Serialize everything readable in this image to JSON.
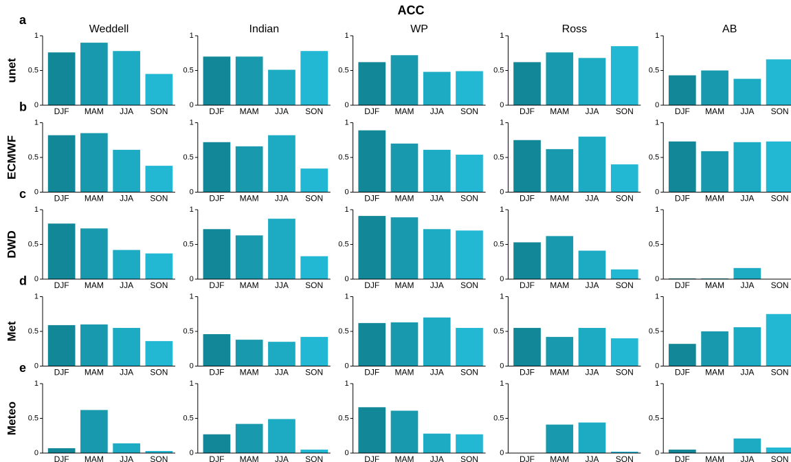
{
  "title": "ACC",
  "chart_data": [
    {
      "type": "bar",
      "title": "Weddell",
      "panel": "a",
      "ylabel": "unet",
      "categories": [
        "DJF",
        "MAM",
        "JJA",
        "SON"
      ],
      "values": [
        0.76,
        0.9,
        0.78,
        0.45
      ],
      "colors": [
        "#118797",
        "#1899ad",
        "#1cabc3",
        "#22b7d2"
      ],
      "ylim": [
        0,
        1
      ],
      "yticks": [
        0,
        0.5,
        1
      ]
    },
    {
      "type": "bar",
      "title": "Indian",
      "categories": [
        "DJF",
        "MAM",
        "JJA",
        "SON"
      ],
      "values": [
        0.7,
        0.7,
        0.51,
        0.78
      ],
      "colors": [
        "#118797",
        "#1899ad",
        "#1cabc3",
        "#22b7d2"
      ],
      "ylim": [
        0,
        1
      ],
      "yticks": [
        0,
        0.5,
        1
      ]
    },
    {
      "type": "bar",
      "title": "WP",
      "categories": [
        "DJF",
        "MAM",
        "JJA",
        "SON"
      ],
      "values": [
        0.62,
        0.72,
        0.48,
        0.49
      ],
      "colors": [
        "#118797",
        "#1899ad",
        "#1cabc3",
        "#22b7d2"
      ],
      "ylim": [
        0,
        1
      ],
      "yticks": [
        0,
        0.5,
        1
      ]
    },
    {
      "type": "bar",
      "title": "Ross",
      "categories": [
        "DJF",
        "MAM",
        "JJA",
        "SON"
      ],
      "values": [
        0.62,
        0.76,
        0.68,
        0.85
      ],
      "colors": [
        "#118797",
        "#1899ad",
        "#1cabc3",
        "#22b7d2"
      ],
      "ylim": [
        0,
        1
      ],
      "yticks": [
        0,
        0.5,
        1
      ]
    },
    {
      "type": "bar",
      "title": "AB",
      "categories": [
        "DJF",
        "MAM",
        "JJA",
        "SON"
      ],
      "values": [
        0.43,
        0.5,
        0.38,
        0.66
      ],
      "colors": [
        "#118797",
        "#1899ad",
        "#1cabc3",
        "#22b7d2"
      ],
      "ylim": [
        0,
        1
      ],
      "yticks": [
        0,
        0.5,
        1
      ]
    },
    {
      "type": "bar",
      "panel": "b",
      "ylabel": "ECMWF",
      "categories": [
        "DJF",
        "MAM",
        "JJA",
        "SON"
      ],
      "values": [
        0.82,
        0.85,
        0.61,
        0.38
      ],
      "colors": [
        "#118797",
        "#1899ad",
        "#1cabc3",
        "#22b7d2"
      ],
      "ylim": [
        0,
        1
      ],
      "yticks": [
        0,
        0.5,
        1
      ]
    },
    {
      "type": "bar",
      "categories": [
        "DJF",
        "MAM",
        "JJA",
        "SON"
      ],
      "values": [
        0.72,
        0.66,
        0.82,
        0.34
      ],
      "colors": [
        "#118797",
        "#1899ad",
        "#1cabc3",
        "#22b7d2"
      ],
      "ylim": [
        0,
        1
      ],
      "yticks": [
        0,
        0.5,
        1
      ]
    },
    {
      "type": "bar",
      "categories": [
        "DJF",
        "MAM",
        "JJA",
        "SON"
      ],
      "values": [
        0.89,
        0.7,
        0.61,
        0.54
      ],
      "colors": [
        "#118797",
        "#1899ad",
        "#1cabc3",
        "#22b7d2"
      ],
      "ylim": [
        0,
        1
      ],
      "yticks": [
        0,
        0.5,
        1
      ]
    },
    {
      "type": "bar",
      "categories": [
        "DJF",
        "MAM",
        "JJA",
        "SON"
      ],
      "values": [
        0.75,
        0.62,
        0.8,
        0.4
      ],
      "colors": [
        "#118797",
        "#1899ad",
        "#1cabc3",
        "#22b7d2"
      ],
      "ylim": [
        0,
        1
      ],
      "yticks": [
        0,
        0.5,
        1
      ]
    },
    {
      "type": "bar",
      "categories": [
        "DJF",
        "MAM",
        "JJA",
        "SON"
      ],
      "values": [
        0.73,
        0.59,
        0.72,
        0.73
      ],
      "colors": [
        "#118797",
        "#1899ad",
        "#1cabc3",
        "#22b7d2"
      ],
      "ylim": [
        0,
        1
      ],
      "yticks": [
        0,
        0.5,
        1
      ]
    },
    {
      "type": "bar",
      "panel": "c",
      "ylabel": "DWD",
      "categories": [
        "DJF",
        "MAM",
        "JJA",
        "SON"
      ],
      "values": [
        0.8,
        0.73,
        0.42,
        0.37
      ],
      "colors": [
        "#118797",
        "#1899ad",
        "#1cabc3",
        "#22b7d2"
      ],
      "ylim": [
        0,
        1
      ],
      "yticks": [
        0,
        0.5,
        1
      ]
    },
    {
      "type": "bar",
      "categories": [
        "DJF",
        "MAM",
        "JJA",
        "SON"
      ],
      "values": [
        0.72,
        0.63,
        0.87,
        0.33
      ],
      "colors": [
        "#118797",
        "#1899ad",
        "#1cabc3",
        "#22b7d2"
      ],
      "ylim": [
        0,
        1
      ],
      "yticks": [
        0,
        0.5,
        1
      ]
    },
    {
      "type": "bar",
      "categories": [
        "DJF",
        "MAM",
        "JJA",
        "SON"
      ],
      "values": [
        0.91,
        0.89,
        0.72,
        0.7
      ],
      "colors": [
        "#118797",
        "#1899ad",
        "#1cabc3",
        "#22b7d2"
      ],
      "ylim": [
        0,
        1
      ],
      "yticks": [
        0,
        0.5,
        1
      ]
    },
    {
      "type": "bar",
      "categories": [
        "DJF",
        "MAM",
        "JJA",
        "SON"
      ],
      "values": [
        0.53,
        0.62,
        0.41,
        0.14
      ],
      "colors": [
        "#118797",
        "#1899ad",
        "#1cabc3",
        "#22b7d2"
      ],
      "ylim": [
        0,
        1
      ],
      "yticks": [
        0,
        0.5,
        1
      ]
    },
    {
      "type": "bar",
      "categories": [
        "DJF",
        "MAM",
        "JJA",
        "SON"
      ],
      "values": [
        0.01,
        0.01,
        0.16,
        0
      ],
      "colors": [
        "#118797",
        "#1899ad",
        "#1cabc3",
        "#22b7d2"
      ],
      "ylim": [
        0,
        1
      ],
      "yticks": [
        0,
        0.5,
        1
      ]
    },
    {
      "type": "bar",
      "panel": "d",
      "ylabel": "Met",
      "categories": [
        "DJF",
        "MAM",
        "JJA",
        "SON"
      ],
      "values": [
        0.59,
        0.6,
        0.55,
        0.36
      ],
      "colors": [
        "#118797",
        "#1899ad",
        "#1cabc3",
        "#22b7d2"
      ],
      "ylim": [
        0,
        1
      ],
      "yticks": [
        0,
        0.5,
        1
      ]
    },
    {
      "type": "bar",
      "categories": [
        "DJF",
        "MAM",
        "JJA",
        "SON"
      ],
      "values": [
        0.46,
        0.38,
        0.35,
        0.42
      ],
      "colors": [
        "#118797",
        "#1899ad",
        "#1cabc3",
        "#22b7d2"
      ],
      "ylim": [
        0,
        1
      ],
      "yticks": [
        0,
        0.5,
        1
      ]
    },
    {
      "type": "bar",
      "categories": [
        "DJF",
        "MAM",
        "JJA",
        "SON"
      ],
      "values": [
        0.62,
        0.63,
        0.7,
        0.55
      ],
      "colors": [
        "#118797",
        "#1899ad",
        "#1cabc3",
        "#22b7d2"
      ],
      "ylim": [
        0,
        1
      ],
      "yticks": [
        0,
        0.5,
        1
      ]
    },
    {
      "type": "bar",
      "categories": [
        "DJF",
        "MAM",
        "JJA",
        "SON"
      ],
      "values": [
        0.55,
        0.42,
        0.55,
        0.4
      ],
      "colors": [
        "#118797",
        "#1899ad",
        "#1cabc3",
        "#22b7d2"
      ],
      "ylim": [
        0,
        1
      ],
      "yticks": [
        0,
        0.5,
        1
      ]
    },
    {
      "type": "bar",
      "categories": [
        "DJF",
        "MAM",
        "JJA",
        "SON"
      ],
      "values": [
        0.32,
        0.5,
        0.56,
        0.75
      ],
      "colors": [
        "#118797",
        "#1899ad",
        "#1cabc3",
        "#22b7d2"
      ],
      "ylim": [
        0,
        1
      ],
      "yticks": [
        0,
        0.5,
        1
      ]
    },
    {
      "type": "bar",
      "panel": "e",
      "ylabel": "Meteo",
      "categories": [
        "DJF",
        "MAM",
        "JJA",
        "SON"
      ],
      "values": [
        0.07,
        0.62,
        0.14,
        0.03
      ],
      "colors": [
        "#118797",
        "#1899ad",
        "#1cabc3",
        "#22b7d2"
      ],
      "ylim": [
        0,
        1
      ],
      "yticks": [
        0,
        0.5,
        1
      ]
    },
    {
      "type": "bar",
      "categories": [
        "DJF",
        "MAM",
        "JJA",
        "SON"
      ],
      "values": [
        0.27,
        0.42,
        0.49,
        0.05
      ],
      "colors": [
        "#118797",
        "#1899ad",
        "#1cabc3",
        "#22b7d2"
      ],
      "ylim": [
        0,
        1
      ],
      "yticks": [
        0,
        0.5,
        1
      ]
    },
    {
      "type": "bar",
      "categories": [
        "DJF",
        "MAM",
        "JJA",
        "SON"
      ],
      "values": [
        0.66,
        0.61,
        0.28,
        0.27
      ],
      "colors": [
        "#118797",
        "#1899ad",
        "#1cabc3",
        "#22b7d2"
      ],
      "ylim": [
        0,
        1
      ],
      "yticks": [
        0,
        0.5,
        1
      ]
    },
    {
      "type": "bar",
      "categories": [
        "DJF",
        "MAM",
        "JJA",
        "SON"
      ],
      "values": [
        0,
        0.41,
        0.44,
        0.02
      ],
      "colors": [
        "#118797",
        "#1899ad",
        "#1cabc3",
        "#22b7d2"
      ],
      "ylim": [
        0,
        1
      ],
      "yticks": [
        0,
        0.5,
        1
      ]
    },
    {
      "type": "bar",
      "categories": [
        "DJF",
        "MAM",
        "JJA",
        "SON"
      ],
      "values": [
        0.05,
        0,
        0.21,
        0.08
      ],
      "colors": [
        "#118797",
        "#1899ad",
        "#1cabc3",
        "#22b7d2"
      ],
      "ylim": [
        0,
        1
      ],
      "yticks": [
        0,
        0.5,
        1
      ]
    }
  ]
}
